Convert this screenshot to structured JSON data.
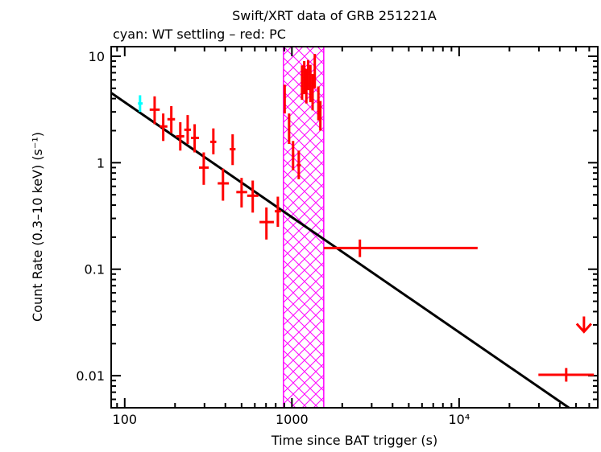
{
  "chart_data": {
    "type": "scatter",
    "title": "Swift/XRT data of GRB 251221A",
    "subtitle": "cyan: WT settling – red: PC",
    "xlabel": "Time since BAT trigger (s)",
    "ylabel": "Count Rate (0.3–10 keV) (s⁻¹)",
    "xscale": "log",
    "yscale": "log",
    "xlim": [
      83,
      67500
    ],
    "ylim": [
      0.005,
      12.3
    ],
    "xticks": [
      {
        "v": 100,
        "label": "100"
      },
      {
        "v": 1000,
        "label": "1000"
      },
      {
        "v": 10000,
        "label": "10⁴"
      }
    ],
    "yticks": [
      {
        "v": 10,
        "label": "10"
      },
      {
        "v": 1,
        "label": "1"
      },
      {
        "v": 0.1,
        "label": "0.1"
      },
      {
        "v": 0.01,
        "label": "0.01"
      }
    ],
    "colors": {
      "wt": "#00ffff",
      "pc": "#ff0000",
      "model": "#000000",
      "band": "#ff00ff"
    },
    "shaded_band": {
      "x": [
        890,
        1550
      ]
    },
    "model": {
      "norm_at_100s": 3.7,
      "index": 1.08
    },
    "series": [
      {
        "name": "WT settling",
        "color": "#00ffff",
        "points": [
          {
            "t": 123.5,
            "tlo": 120,
            "thi": 128,
            "r": 3.6,
            "rlo": 3.0,
            "rhi": 4.3
          }
        ]
      },
      {
        "name": "PC",
        "color": "#ff0000",
        "points": [
          {
            "t": 151,
            "tlo": 141,
            "thi": 162,
            "r": 3.15,
            "rlo": 2.3,
            "rhi": 4.2
          },
          {
            "t": 170,
            "tlo": 162,
            "thi": 180,
            "r": 2.19,
            "rlo": 1.6,
            "rhi": 2.9
          },
          {
            "t": 190,
            "tlo": 180,
            "thi": 200,
            "r": 2.56,
            "rlo": 1.9,
            "rhi": 3.4
          },
          {
            "t": 215,
            "tlo": 203,
            "thi": 227,
            "r": 1.77,
            "rlo": 1.3,
            "rhi": 2.4
          },
          {
            "t": 238,
            "tlo": 227,
            "thi": 249,
            "r": 2.04,
            "rlo": 1.5,
            "rhi": 2.8
          },
          {
            "t": 262,
            "tlo": 249,
            "thi": 278,
            "r": 1.71,
            "rlo": 1.25,
            "rhi": 2.3
          },
          {
            "t": 297,
            "tlo": 278,
            "thi": 318,
            "r": 0.9,
            "rlo": 0.62,
            "rhi": 1.25
          },
          {
            "t": 339,
            "tlo": 325,
            "thi": 353,
            "r": 1.57,
            "rlo": 1.2,
            "rhi": 2.1
          },
          {
            "t": 387,
            "tlo": 360,
            "thi": 420,
            "r": 0.64,
            "rlo": 0.44,
            "rhi": 0.88
          },
          {
            "t": 442,
            "tlo": 425,
            "thi": 460,
            "r": 1.34,
            "rlo": 0.95,
            "rhi": 1.85
          },
          {
            "t": 500,
            "tlo": 465,
            "thi": 540,
            "r": 0.53,
            "rlo": 0.38,
            "rhi": 0.72
          },
          {
            "t": 583,
            "tlo": 540,
            "thi": 630,
            "r": 0.49,
            "rlo": 0.34,
            "rhi": 0.68
          },
          {
            "t": 704,
            "tlo": 640,
            "thi": 780,
            "r": 0.277,
            "rlo": 0.19,
            "rhi": 0.38
          },
          {
            "t": 824,
            "tlo": 790,
            "thi": 860,
            "r": 0.35,
            "rlo": 0.25,
            "rhi": 0.48
          },
          {
            "t": 905,
            "tlo": 895,
            "thi": 915,
            "r": 4.0,
            "rlo": 2.9,
            "rhi": 5.4
          },
          {
            "t": 962,
            "tlo": 950,
            "thi": 975,
            "r": 2.11,
            "rlo": 1.5,
            "rhi": 2.9
          },
          {
            "t": 1016,
            "tlo": 1000,
            "thi": 1035,
            "r": 1.19,
            "rlo": 0.85,
            "rhi": 1.6
          },
          {
            "t": 1099,
            "tlo": 1070,
            "thi": 1130,
            "r": 0.95,
            "rlo": 0.7,
            "rhi": 1.3
          },
          {
            "t": 1150,
            "tlo": 1140,
            "thi": 1160,
            "r": 5.9,
            "rlo": 3.9,
            "rhi": 8.2
          },
          {
            "t": 1185,
            "tlo": 1175,
            "thi": 1195,
            "r": 6.5,
            "rlo": 4.4,
            "rhi": 9.0
          },
          {
            "t": 1220,
            "tlo": 1210,
            "thi": 1230,
            "r": 5.4,
            "rlo": 3.6,
            "rhi": 7.6
          },
          {
            "t": 1250,
            "tlo": 1240,
            "thi": 1260,
            "r": 6.8,
            "rlo": 4.8,
            "rhi": 9.2
          },
          {
            "t": 1290,
            "tlo": 1280,
            "thi": 1300,
            "r": 5.9,
            "rlo": 3.7,
            "rhi": 8.3
          },
          {
            "t": 1330,
            "tlo": 1320,
            "thi": 1340,
            "r": 4.8,
            "rlo": 3.1,
            "rhi": 6.8
          },
          {
            "t": 1370,
            "tlo": 1360,
            "thi": 1380,
            "r": 7.7,
            "rlo": 5.0,
            "rhi": 10.5
          },
          {
            "t": 1440,
            "tlo": 1430,
            "thi": 1450,
            "r": 3.7,
            "rlo": 2.5,
            "rhi": 5.2
          },
          {
            "t": 1480,
            "tlo": 1470,
            "thi": 1495,
            "r": 2.8,
            "rlo": 2.0,
            "rhi": 3.8
          },
          {
            "t": 2550,
            "tlo": 1550,
            "thi": 12900,
            "r": 0.158,
            "rlo": 0.13,
            "rhi": 0.19
          },
          {
            "t": 43700,
            "tlo": 29800,
            "thi": 64000,
            "r": 0.0102,
            "rlo": 0.0088,
            "rhi": 0.0118
          }
        ]
      },
      {
        "name": "upper limit",
        "color": "#ff0000",
        "upper_limits": [
          {
            "t": 55800,
            "r": 0.036
          }
        ]
      }
    ]
  }
}
